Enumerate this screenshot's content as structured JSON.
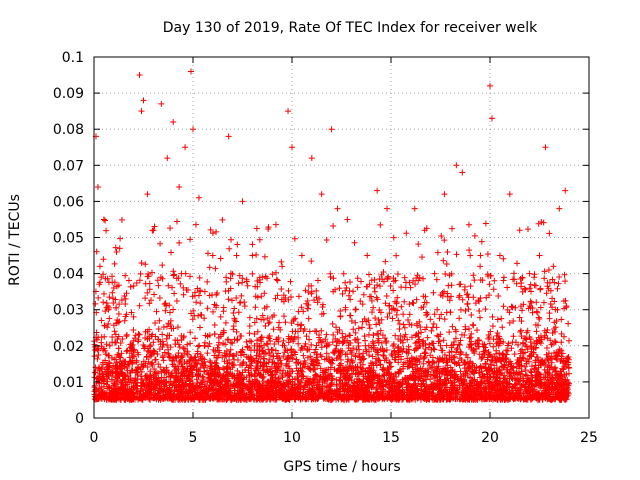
{
  "chart_data": {
    "type": "scatter",
    "title": "Day 130 of 2019, Rate Of TEC Index for receiver welk",
    "xlabel": "GPS time / hours",
    "ylabel": "ROTI / TECUs",
    "xlim": [
      0,
      25
    ],
    "ylim": [
      0,
      0.1
    ],
    "x_ticks": [
      0,
      5,
      10,
      15,
      20,
      25
    ],
    "x_tick_labels": [
      "0",
      "5",
      "10",
      "15",
      "20",
      "25"
    ],
    "y_ticks": [
      0,
      0.01,
      0.02,
      0.03,
      0.04,
      0.05,
      0.06,
      0.07,
      0.08,
      0.09,
      0.1
    ],
    "y_tick_labels": [
      "0",
      "0.01",
      "0.02",
      "0.03",
      "0.04",
      "0.05",
      "0.06",
      "0.07",
      "0.08",
      "0.09",
      "0.1"
    ],
    "grid": true,
    "marker": "+",
    "series_color": "#ff0000",
    "series": [
      {
        "name": "ROTI",
        "x": [
          0.1,
          0.2,
          0.3,
          0.5,
          0.7,
          1.0,
          1.3,
          1.6,
          2.0,
          2.3,
          2.4,
          2.5,
          2.7,
          3.0,
          3.4,
          3.7,
          4.0,
          4.3,
          4.6,
          4.9,
          5.0,
          5.3,
          5.6,
          6.0,
          6.4,
          6.8,
          7.2,
          7.5,
          8.0,
          8.5,
          9.0,
          9.5,
          9.8,
          10.0,
          10.5,
          11.0,
          11.5,
          12.0,
          12.3,
          12.8,
          13.2,
          13.8,
          14.3,
          14.8,
          15.2,
          15.7,
          16.2,
          16.7,
          17.2,
          17.7,
          18.3,
          18.6,
          19.0,
          19.5,
          20.0,
          20.1,
          20.5,
          21.0,
          21.5,
          22.0,
          22.5,
          22.8,
          23.2,
          23.5,
          23.8,
          0.4,
          1.8,
          3.2,
          4.5,
          5.8,
          7.8,
          9.2,
          11.2,
          13.0,
          14.6,
          16.4,
          18.0,
          19.8,
          21.8,
          23.0,
          0.8,
          2.8,
          6.6,
          8.8,
          12.6,
          15.5,
          17.5,
          19.2,
          22.2,
          23.6
        ],
        "y": [
          0.078,
          0.064,
          0.042,
          0.055,
          0.031,
          0.036,
          0.047,
          0.033,
          0.028,
          0.095,
          0.085,
          0.088,
          0.062,
          0.052,
          0.087,
          0.072,
          0.082,
          0.064,
          0.075,
          0.096,
          0.08,
          0.061,
          0.035,
          0.045,
          0.028,
          0.078,
          0.045,
          0.06,
          0.045,
          0.039,
          0.028,
          0.042,
          0.085,
          0.075,
          0.045,
          0.072,
          0.062,
          0.08,
          0.058,
          0.055,
          0.03,
          0.045,
          0.063,
          0.058,
          0.03,
          0.025,
          0.058,
          0.052,
          0.04,
          0.062,
          0.07,
          0.068,
          0.045,
          0.042,
          0.092,
          0.083,
          0.045,
          0.062,
          0.052,
          0.04,
          0.045,
          0.075,
          0.042,
          0.058,
          0.063,
          0.012,
          0.015,
          0.01,
          0.013,
          0.011,
          0.014,
          0.009,
          0.012,
          0.016,
          0.01,
          0.013,
          0.011,
          0.015,
          0.012,
          0.014,
          0.02,
          0.022,
          0.018,
          0.019,
          0.021,
          0.017,
          0.02,
          0.018,
          0.019,
          0.021
        ]
      }
    ]
  }
}
